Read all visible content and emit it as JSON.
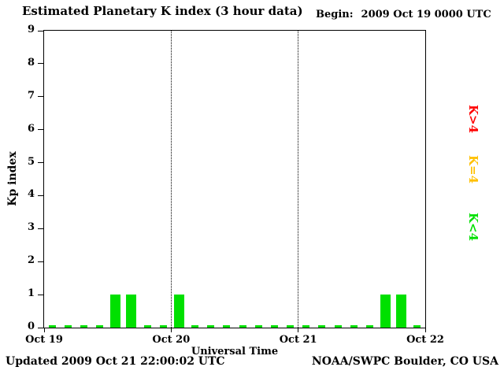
{
  "header": {
    "title": "Estimated Planetary K index (3 hour data)",
    "begin_label": "Begin:",
    "begin_value": "2009 Oct 19 0000 UTC"
  },
  "footer": {
    "updated": "Updated 2009 Oct 21 22:00:02 UTC",
    "source": "NOAA/SWPC Boulder, CO USA"
  },
  "legend": [
    {
      "label": "K>4",
      "color": "#ff0000"
    },
    {
      "label": "K=4",
      "color": "#ffc000"
    },
    {
      "label": "K<4",
      "color": "#00e000"
    }
  ],
  "chart_data": {
    "type": "bar",
    "title": "Estimated Planetary K index (3 hour data)",
    "xlabel": "Universal Time",
    "ylabel": "Kp index",
    "ylim": [
      0,
      9
    ],
    "y_ticks": [
      0,
      1,
      2,
      3,
      4,
      5,
      6,
      7,
      8,
      9
    ],
    "x_tick_labels": [
      "Oct 19",
      "Oct 20",
      "Oct 21",
      "Oct 22"
    ],
    "grid_lines_x": [
      "Oct 20",
      "Oct 21"
    ],
    "hours_per_bar": 3,
    "values": [
      0,
      0,
      0,
      0,
      1,
      1,
      0,
      0,
      1,
      0,
      0,
      0,
      0,
      0,
      0,
      0,
      0,
      0,
      0,
      0,
      0,
      1,
      1,
      0
    ],
    "colors": {
      "green": "#00e000",
      "yellow": "#ffc000",
      "red": "#ff0000"
    },
    "color_rule": "green if K<4, yellow if K=4, red if K>4",
    "legend_position": "right",
    "grid": "dotted vertical lines at day boundaries"
  }
}
